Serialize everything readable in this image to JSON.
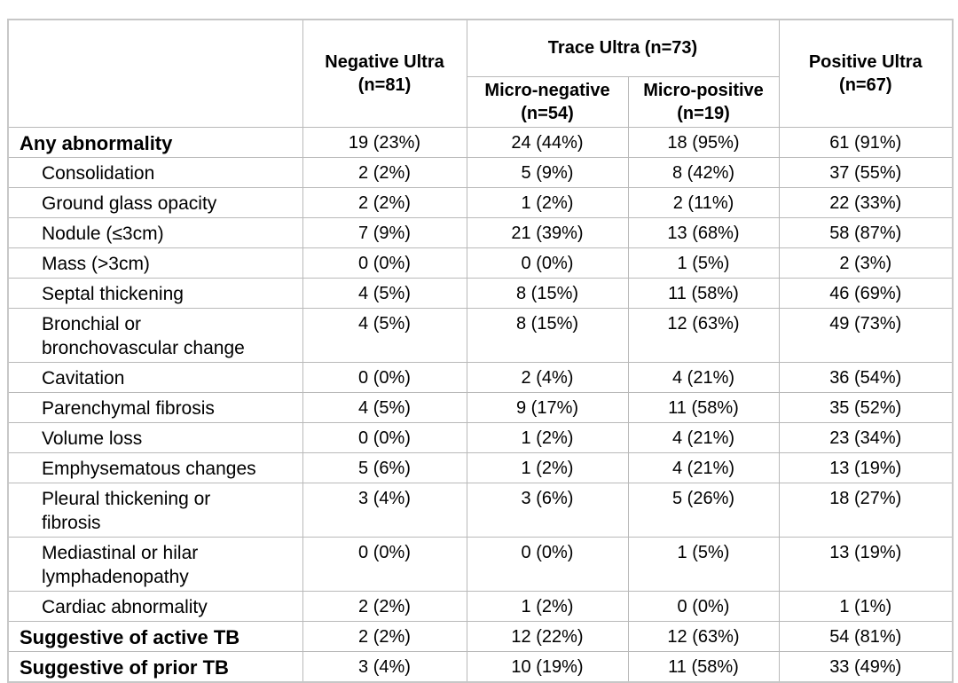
{
  "table": {
    "title_hint": "Radiological findings by Ultra test result",
    "header": {
      "corner": "",
      "negative": {
        "line1": "Negative Ultra",
        "line2": "(n=81)"
      },
      "trace_group": "Trace Ultra (n=73)",
      "micro_negative": {
        "line1": "Micro-negative",
        "line2": "(n=54)"
      },
      "micro_positive": {
        "line1": "Micro-positive",
        "line2": "(n=19)"
      },
      "positive": {
        "line1": "Positive Ultra",
        "line2": "(n=67)"
      }
    },
    "rows": [
      {
        "lines": [
          "Any abnormality"
        ],
        "bold": true,
        "indent": false,
        "values": [
          "19 (23%)",
          "24 (44%)",
          "18 (95%)",
          "61 (91%)"
        ]
      },
      {
        "lines": [
          "Consolidation"
        ],
        "bold": false,
        "indent": true,
        "values": [
          "2 (2%)",
          "5 (9%)",
          "8 (42%)",
          "37 (55%)"
        ]
      },
      {
        "lines": [
          "Ground glass opacity"
        ],
        "bold": false,
        "indent": true,
        "values": [
          "2 (2%)",
          "1 (2%)",
          "2 (11%)",
          "22 (33%)"
        ]
      },
      {
        "lines": [
          "Nodule (≤3cm)"
        ],
        "bold": false,
        "indent": true,
        "values": [
          "7 (9%)",
          "21 (39%)",
          "13 (68%)",
          "58 (87%)"
        ]
      },
      {
        "lines": [
          "Mass (>3cm)"
        ],
        "bold": false,
        "indent": true,
        "values": [
          "0 (0%)",
          "0 (0%)",
          "1 (5%)",
          "2 (3%)"
        ]
      },
      {
        "lines": [
          "Septal thickening"
        ],
        "bold": false,
        "indent": true,
        "values": [
          "4 (5%)",
          "8 (15%)",
          "11 (58%)",
          "46 (69%)"
        ]
      },
      {
        "lines": [
          "Bronchial or",
          "bronchovascular change"
        ],
        "bold": false,
        "indent": true,
        "values": [
          "4 (5%)",
          "8 (15%)",
          "12 (63%)",
          "49 (73%)"
        ]
      },
      {
        "lines": [
          "Cavitation"
        ],
        "bold": false,
        "indent": true,
        "values": [
          "0 (0%)",
          "2 (4%)",
          "4 (21%)",
          "36 (54%)"
        ]
      },
      {
        "lines": [
          "Parenchymal fibrosis"
        ],
        "bold": false,
        "indent": true,
        "values": [
          "4 (5%)",
          "9 (17%)",
          "11 (58%)",
          "35 (52%)"
        ]
      },
      {
        "lines": [
          "Volume loss"
        ],
        "bold": false,
        "indent": true,
        "values": [
          "0 (0%)",
          "1 (2%)",
          "4 (21%)",
          "23 (34%)"
        ]
      },
      {
        "lines": [
          "Emphysematous changes"
        ],
        "bold": false,
        "indent": true,
        "values": [
          "5 (6%)",
          "1 (2%)",
          "4 (21%)",
          "13 (19%)"
        ]
      },
      {
        "lines": [
          "Pleural thickening or",
          "fibrosis"
        ],
        "bold": false,
        "indent": true,
        "values": [
          "3 (4%)",
          "3 (6%)",
          "5 (26%)",
          "18 (27%)"
        ]
      },
      {
        "lines": [
          "Mediastinal or hilar",
          "lymphadenopathy"
        ],
        "bold": false,
        "indent": true,
        "values": [
          "0 (0%)",
          "0 (0%)",
          "1 (5%)",
          "13 (19%)"
        ]
      },
      {
        "lines": [
          "Cardiac abnormality"
        ],
        "bold": false,
        "indent": true,
        "values": [
          "2 (2%)",
          "1 (2%)",
          "0 (0%)",
          "1 (1%)"
        ]
      },
      {
        "lines": [
          "Suggestive of active TB"
        ],
        "bold": true,
        "indent": false,
        "values": [
          "2 (2%)",
          "12 (22%)",
          "12 (63%)",
          "54 (81%)"
        ]
      },
      {
        "lines": [
          "Suggestive of prior TB"
        ],
        "bold": true,
        "indent": false,
        "values": [
          "3 (4%)",
          "10 (19%)",
          "11 (58%)",
          "33 (49%)"
        ]
      }
    ],
    "colors": {
      "grid_line": "#b9b9b9",
      "outer_border": "#c7c7c7",
      "text": "#000000",
      "background": "#ffffff"
    }
  }
}
